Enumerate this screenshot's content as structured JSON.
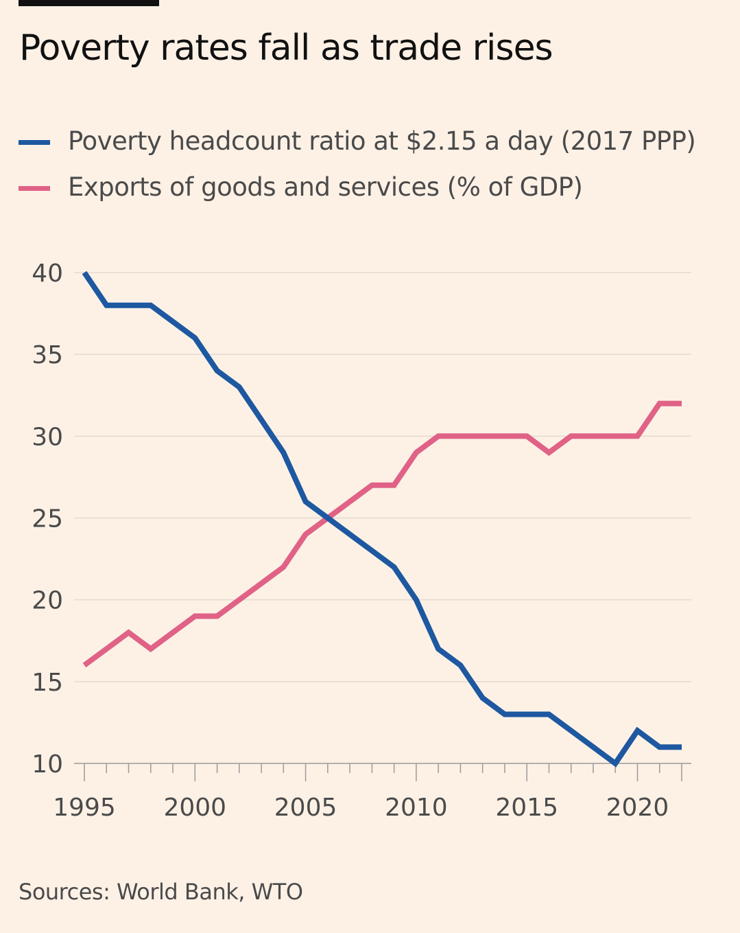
{
  "title": "Poverty rates fall as trade rises",
  "source": "Sources: World Bank, WTO",
  "colors": {
    "background": "#fdf1e6",
    "poverty": "#1d58a0",
    "exports": "#e06287",
    "grid": "#e3dad0",
    "axis": "#999999"
  },
  "chart_data": {
    "type": "line",
    "title": "Poverty rates fall as trade rises",
    "xlabel": "",
    "ylabel": "",
    "xlim": [
      1995,
      2022
    ],
    "ylim": [
      10,
      40
    ],
    "xticks": [
      1995,
      2000,
      2005,
      2010,
      2015,
      2020
    ],
    "yticks": [
      10,
      15,
      20,
      25,
      30,
      35,
      40
    ],
    "grid": true,
    "legend_position": "top-left",
    "x": [
      1995,
      1996,
      1997,
      1998,
      1999,
      2000,
      2001,
      2002,
      2003,
      2004,
      2005,
      2006,
      2007,
      2008,
      2009,
      2010,
      2011,
      2012,
      2013,
      2014,
      2015,
      2016,
      2017,
      2018,
      2019,
      2020,
      2021,
      2022
    ],
    "series": [
      {
        "name": "Poverty headcount ratio at $2.15 a day (2017 PPP)",
        "color": "#1d58a0",
        "values": [
          40,
          38,
          38,
          38,
          37,
          36,
          34,
          33,
          31,
          29,
          26,
          25,
          24,
          23,
          22,
          20,
          17,
          16,
          14,
          13,
          13,
          13,
          12,
          11,
          10,
          12,
          11,
          11
        ]
      },
      {
        "name": "Exports of goods and services (% of GDP)",
        "color": "#e06287",
        "values": [
          16,
          17,
          18,
          17,
          18,
          19,
          19,
          20,
          21,
          22,
          24,
          25,
          26,
          27,
          27,
          29,
          30,
          30,
          30,
          30,
          30,
          29,
          30,
          30,
          30,
          30,
          32,
          32
        ]
      }
    ]
  }
}
